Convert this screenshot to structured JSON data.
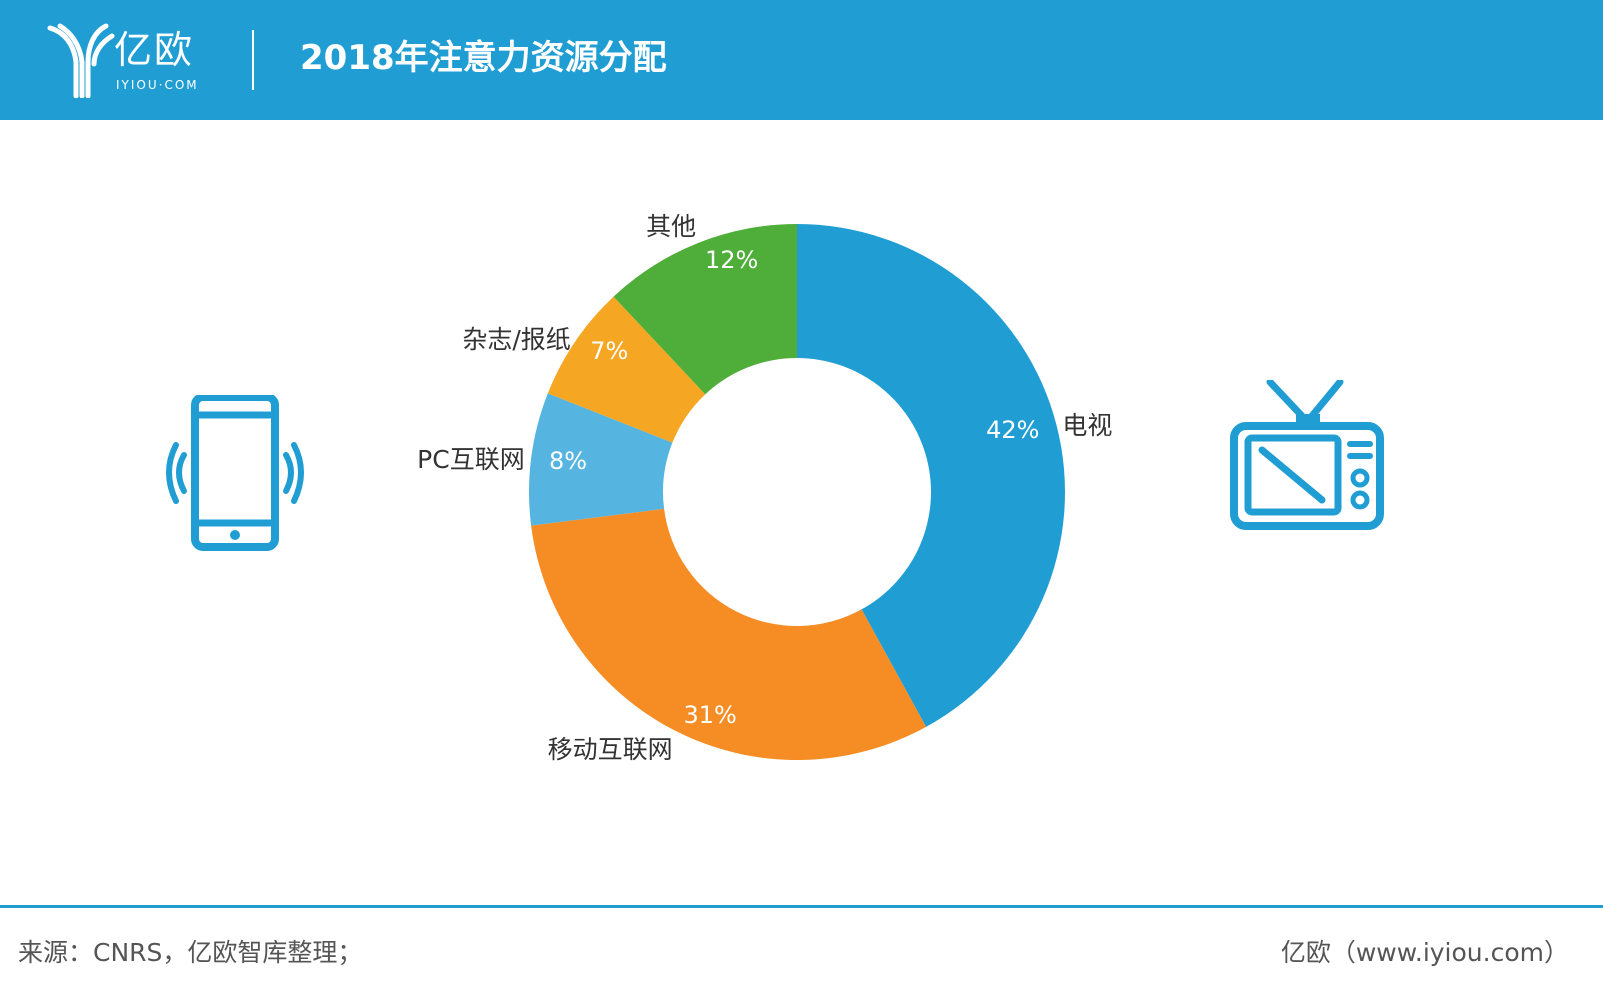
{
  "header": {
    "logo_cn": "亿欧",
    "logo_en": "IYIOU·COM",
    "title": "2018年注意力资源分配"
  },
  "chart_data": {
    "type": "pie",
    "variant": "donut",
    "categories": [
      "电视",
      "移动互联网",
      "PC互联网",
      "杂志/报纸",
      "其他"
    ],
    "values": [
      42,
      31,
      8,
      7,
      12
    ],
    "labels": [
      "42%",
      "31%",
      "8%",
      "7%",
      "12%"
    ],
    "colors": [
      "#209ed4",
      "#f58d24",
      "#55b4e0",
      "#f5a623",
      "#4fae3a"
    ],
    "title": "",
    "legend": "none"
  },
  "icons": {
    "left": "smartphone-icon",
    "right": "tv-icon",
    "color": "#209ed4"
  },
  "footer": {
    "source": "来源：CNRS，亿欧智库整理；",
    "credit": "亿欧（www.iyiou.com）"
  }
}
